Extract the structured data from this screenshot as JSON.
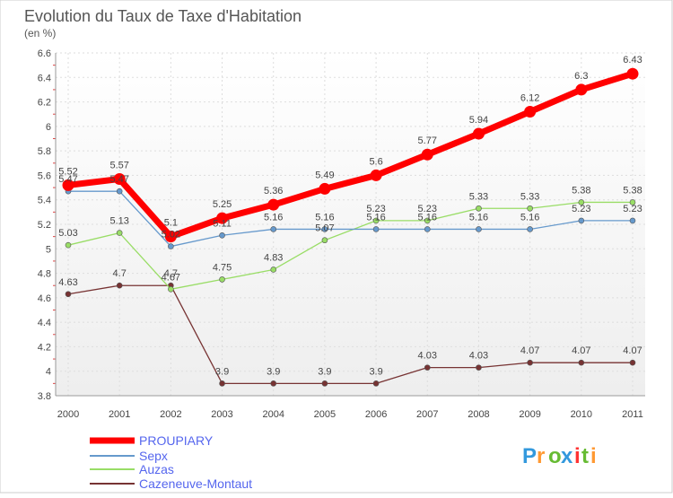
{
  "chart_data": {
    "type": "line",
    "title": "Evolution du Taux de Taxe d'Habitation",
    "subtitle": "(en %)",
    "x": [
      "2000",
      "2001",
      "2002",
      "2003",
      "2004",
      "2005",
      "2006",
      "2007",
      "2008",
      "2009",
      "2010",
      "2011"
    ],
    "y_ticks": [
      "3.8",
      "4",
      "4.2",
      "4.4",
      "4.6",
      "4.8",
      "5",
      "5.2",
      "5.4",
      "5.6",
      "5.8",
      "6",
      "6.2",
      "6.4",
      "6.6"
    ],
    "ylim": [
      3.8,
      6.6
    ],
    "grid": true,
    "legend_position": "bottom-left",
    "series": [
      {
        "name": "PROUPIARY",
        "color": "#ff0000",
        "values": [
          5.52,
          5.57,
          5.1,
          5.25,
          5.36,
          5.49,
          5.6,
          5.77,
          5.94,
          6.12,
          6.3,
          6.43
        ],
        "labels": [
          "5.52",
          "5.57",
          "5.1",
          "5.25",
          "5.36",
          "5.49",
          "5.6",
          "5.77",
          "5.94",
          "6.12",
          "6.3",
          "6.43"
        ]
      },
      {
        "name": "Sepx",
        "color": "#6699cc",
        "values": [
          5.47,
          5.47,
          5.02,
          5.11,
          5.16,
          5.16,
          5.16,
          5.16,
          5.16,
          5.16,
          5.23,
          5.23
        ],
        "labels": [
          "5.47",
          "5.47",
          "5.02",
          "5.11",
          "5.16",
          "5.16",
          "5.16",
          "5.16",
          "5.16",
          "5.16",
          "5.23",
          "5.23"
        ]
      },
      {
        "name": "Auzas",
        "color": "#99dd66",
        "values": [
          5.03,
          5.13,
          4.67,
          4.75,
          4.83,
          5.07,
          5.23,
          5.23,
          5.33,
          5.33,
          5.38,
          5.38
        ],
        "labels": [
          "5.03",
          "5.13",
          "4.67",
          "4.75",
          "4.83",
          "5.07",
          "5.23",
          "5.23",
          "5.33",
          "5.33",
          "5.38",
          "5.38"
        ]
      },
      {
        "name": "Cazeneuve-Montaut",
        "color": "#773333",
        "values": [
          4.63,
          4.7,
          4.7,
          3.9,
          3.9,
          3.9,
          3.9,
          4.03,
          4.03,
          4.07,
          4.07,
          4.07
        ],
        "labels": [
          "4.63",
          "4.7",
          "4.7",
          "3.9",
          "3.9",
          "3.9",
          "3.9",
          "4.03",
          "4.03",
          "4.07",
          "4.07",
          "4.07"
        ]
      }
    ]
  },
  "logo": {
    "text": "Proxiti",
    "colors": [
      "#3399dd",
      "#ff9933",
      "#66bb33",
      "#3399dd",
      "#ff3333",
      "#66bb33",
      "#ff9933"
    ]
  }
}
